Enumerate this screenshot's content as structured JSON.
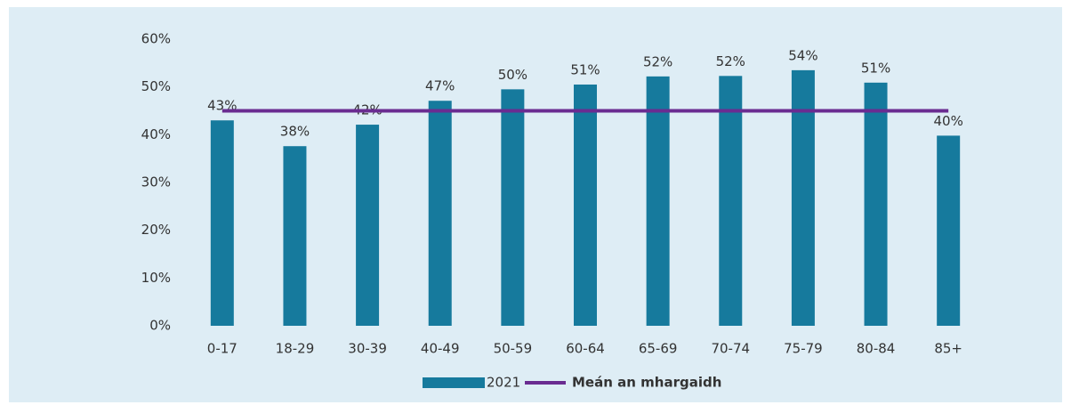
{
  "chart_data": {
    "type": "bar",
    "categories": [
      "0-17",
      "18-29",
      "30-39",
      "40-49",
      "50-59",
      "60-64",
      "65-69",
      "70-74",
      "75-79",
      "80-84",
      "85+"
    ],
    "series": [
      {
        "name": "2021",
        "type": "bar",
        "color": "#167a9d",
        "values": [
          43,
          37.6,
          42.1,
          47.1,
          49.5,
          50.5,
          52.2,
          52.3,
          53.5,
          50.9,
          39.8
        ],
        "value_labels": [
          "43%",
          "38%",
          "42%",
          "47%",
          "50%",
          "51%",
          "52%",
          "52%",
          "54%",
          "51%",
          "40%"
        ]
      },
      {
        "name": "Meán an mhargaidh",
        "type": "line",
        "color": "#6a2c91",
        "values": [
          45,
          45,
          45,
          45,
          45,
          45,
          45,
          45,
          45,
          45,
          45
        ]
      }
    ],
    "ylim": [
      0,
      60
    ],
    "yticks": [
      {
        "value": 0,
        "label": "0%"
      },
      {
        "value": 10,
        "label": "10%"
      },
      {
        "value": 20,
        "label": "20%"
      },
      {
        "value": 30,
        "label": "30%"
      },
      {
        "value": 40,
        "label": "40%"
      },
      {
        "value": 50,
        "label": "50%"
      },
      {
        "value": 60,
        "label": "60%"
      }
    ],
    "legend": "bottom"
  }
}
